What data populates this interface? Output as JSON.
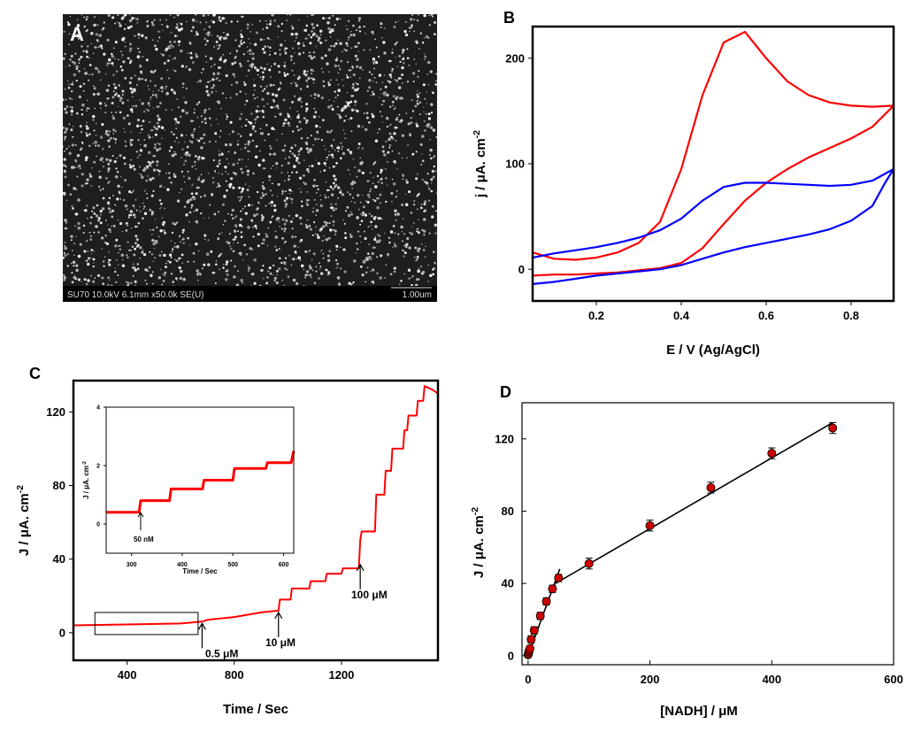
{
  "figure": {
    "panel_labels": [
      "A",
      "B",
      "C",
      "D"
    ]
  },
  "sem_image": {
    "info_bar": "SU70 10.0kV 6.1mm x50.0k SE(U)",
    "scale_bar": "1.00um",
    "background_color": "#1e1e1e",
    "bar_color": "#000000"
  },
  "chart_data": [
    {
      "id": "B",
      "type": "line",
      "title": "",
      "xlabel": "E / V (Ag/AgCl)",
      "ylabel": "j / μA. cm",
      "ylabel_sup": "-2",
      "xlim": [
        0.05,
        0.9
      ],
      "ylim": [
        -30,
        230
      ],
      "xticks": [
        0.2,
        0.4,
        0.6,
        0.8
      ],
      "xtick_labels": [
        "0.2",
        "0.4",
        "0.6",
        "0.8"
      ],
      "yticks": [
        0,
        100,
        200
      ],
      "ytick_labels": [
        "0",
        "100",
        "200"
      ],
      "series": [
        {
          "name": "red-forward",
          "color": "#ff0000",
          "x": [
            0.05,
            0.1,
            0.15,
            0.2,
            0.25,
            0.3,
            0.35,
            0.4,
            0.45,
            0.5,
            0.55,
            0.6,
            0.65,
            0.7,
            0.75,
            0.8,
            0.85,
            0.9
          ],
          "y": [
            16,
            10,
            9,
            11,
            16,
            25,
            45,
            95,
            165,
            215,
            225,
            200,
            178,
            165,
            158,
            155,
            154,
            155
          ]
        },
        {
          "name": "red-reverse",
          "color": "#ff0000",
          "x": [
            0.9,
            0.85,
            0.8,
            0.75,
            0.7,
            0.65,
            0.6,
            0.55,
            0.5,
            0.45,
            0.4,
            0.35,
            0.3,
            0.25,
            0.2,
            0.15,
            0.1,
            0.05
          ],
          "y": [
            155,
            135,
            124,
            115,
            106,
            95,
            82,
            65,
            43,
            20,
            6,
            1,
            -1,
            -3,
            -4,
            -5,
            -5,
            -6
          ]
        },
        {
          "name": "blue-forward",
          "color": "#0000ff",
          "x": [
            0.05,
            0.1,
            0.15,
            0.2,
            0.25,
            0.3,
            0.35,
            0.4,
            0.45,
            0.5,
            0.55,
            0.6,
            0.65,
            0.7,
            0.75,
            0.8,
            0.85,
            0.9
          ],
          "y": [
            11,
            15,
            18,
            21,
            25,
            30,
            37,
            48,
            65,
            78,
            82,
            82,
            81,
            80,
            79,
            80,
            84,
            95
          ]
        },
        {
          "name": "blue-reverse",
          "color": "#0000ff",
          "x": [
            0.9,
            0.88,
            0.85,
            0.8,
            0.75,
            0.7,
            0.65,
            0.6,
            0.55,
            0.5,
            0.45,
            0.4,
            0.35,
            0.3,
            0.25,
            0.2,
            0.15,
            0.1,
            0.05
          ],
          "y": [
            95,
            82,
            60,
            46,
            38,
            33,
            29,
            25,
            21,
            16,
            10,
            4,
            0,
            -2,
            -4,
            -6,
            -9,
            -12,
            -14
          ]
        }
      ]
    },
    {
      "id": "C",
      "type": "line",
      "xlabel": "Time / Sec",
      "ylabel": "J / μA. cm",
      "ylabel_sup": "-2",
      "xlim": [
        200,
        1560
      ],
      "ylim": [
        -15,
        137
      ],
      "xticks": [
        400,
        800,
        1200
      ],
      "xtick_labels": [
        "400",
        "800",
        "1200"
      ],
      "yticks": [
        0,
        40,
        80,
        120
      ],
      "ytick_labels": [
        "0",
        "40",
        "80",
        "120"
      ],
      "series": [
        {
          "name": "amperometric-response",
          "color": "#ff0000",
          "x": [
            200,
            400,
            600,
            680,
            700,
            800,
            900,
            965,
            970,
            1010,
            1015,
            1080,
            1085,
            1140,
            1145,
            1200,
            1205,
            1265,
            1270,
            1275,
            1325,
            1330,
            1360,
            1365,
            1385,
            1390,
            1430,
            1435,
            1445,
            1450,
            1480,
            1485,
            1505,
            1510,
            1540,
            1560
          ],
          "y": [
            4,
            4.5,
            5,
            6,
            7,
            8.5,
            11,
            12,
            18,
            18,
            24,
            24,
            28,
            28,
            32,
            32,
            35,
            35,
            50,
            55,
            55,
            75,
            75,
            88,
            88,
            100,
            100,
            110,
            110,
            118,
            118,
            126,
            126,
            134,
            132,
            130
          ]
        }
      ],
      "annotations": [
        "0.5 μM",
        "10 μM",
        "100 μM"
      ],
      "inset": {
        "xlabel": "Time / Sec",
        "ylabel": "J / μA. cm",
        "ylabel_sup": "-2",
        "xlim": [
          250,
          620
        ],
        "ylim": [
          -1,
          4
        ],
        "xticks": [
          300,
          400,
          500,
          600
        ],
        "xtick_labels": [
          "300",
          "400",
          "500",
          "600"
        ],
        "yticks": [
          0,
          2,
          4
        ],
        "ytick_labels": [
          "0",
          "2",
          "4"
        ],
        "annotation": "50 nM",
        "series": [
          {
            "name": "inset-response",
            "color": "#ff0000",
            "x": [
              250,
              315,
              318,
              375,
              378,
              440,
              443,
              500,
              503,
              565,
              568,
              615,
              620
            ],
            "y": [
              0.4,
              0.4,
              0.8,
              0.8,
              1.2,
              1.2,
              1.5,
              1.5,
              1.9,
              1.9,
              2.1,
              2.1,
              2.5
            ]
          }
        ]
      }
    },
    {
      "id": "D",
      "type": "scatter",
      "xlabel": "[NADH] / μM",
      "ylabel": "J / μA. cm",
      "ylabel_sup": "-2",
      "xlim": [
        -10,
        600
      ],
      "ylim": [
        -5,
        140
      ],
      "xticks": [
        0,
        200,
        400,
        600
      ],
      "xtick_labels": [
        "0",
        "200",
        "400",
        "600"
      ],
      "yticks": [
        0,
        40,
        80,
        120
      ],
      "ytick_labels": [
        "0",
        "40",
        "80",
        "120"
      ],
      "points": {
        "x": [
          0,
          0.5,
          1,
          2,
          3,
          5,
          10,
          20,
          30,
          40,
          50,
          100,
          200,
          300,
          400,
          500
        ],
        "y": [
          0.5,
          1,
          2,
          3,
          4,
          9,
          14,
          22,
          30,
          37,
          43,
          51,
          72,
          93,
          112,
          126
        ],
        "err": [
          1,
          1,
          1,
          1,
          1,
          2,
          2,
          2,
          2,
          2,
          2,
          3,
          3,
          3,
          3,
          3
        ],
        "color": "#cc0000"
      },
      "fit_lines": [
        {
          "x": [
            0,
            52
          ],
          "y": [
            0,
            48
          ]
        },
        {
          "x": [
            45,
            500
          ],
          "y": [
            40,
            129
          ]
        }
      ]
    }
  ]
}
